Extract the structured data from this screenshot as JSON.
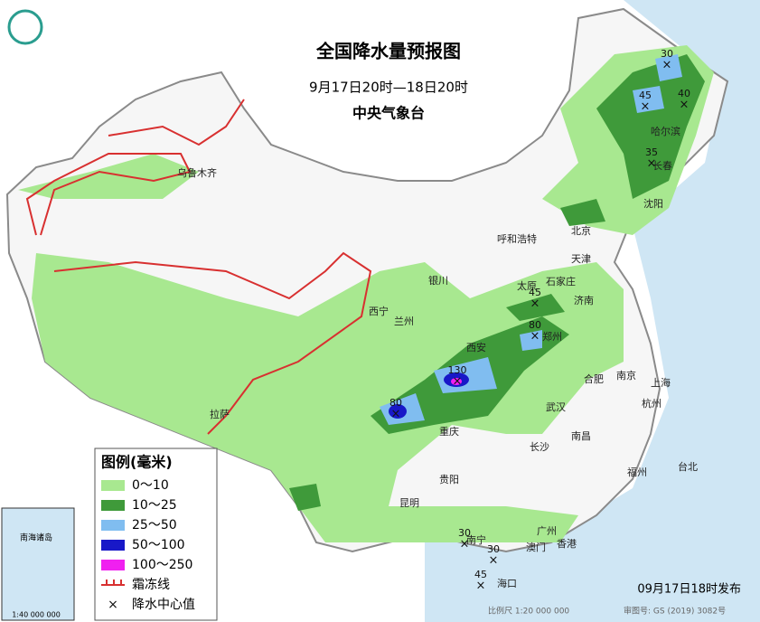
{
  "header": {
    "title": "全国降水量预报图",
    "subtitle": "9月17日20时—18日20时",
    "agency": "中央气象台"
  },
  "legend": {
    "title": "图例(毫米)",
    "items": [
      {
        "label": "0～10",
        "color": "#a8e890"
      },
      {
        "label": "10～25",
        "color": "#3f9a3a"
      },
      {
        "label": "25～50",
        "color": "#80bdf0"
      },
      {
        "label": "50～100",
        "color": "#1818c8"
      },
      {
        "label": "100～250",
        "color": "#f020f0"
      },
      {
        "label": "霜冻线",
        "color": "#d83030"
      },
      {
        "label": "降水中心值",
        "color": "#111111"
      }
    ]
  },
  "cities": [
    "乌鲁木齐",
    "哈尔滨",
    "长春",
    "沈阳",
    "呼和浩特",
    "北京",
    "天津",
    "石家庄",
    "太原",
    "银川",
    "济南",
    "西宁",
    "兰州",
    "郑州",
    "西安",
    "合肥",
    "南京",
    "上海",
    "拉萨",
    "武汉",
    "杭州",
    "重庆",
    "长沙",
    "南昌",
    "贵阳",
    "福州",
    "台北",
    "昆明",
    "南宁",
    "广州",
    "澳门",
    "香港",
    "海口"
  ],
  "centers": [
    30,
    45,
    40,
    35,
    45,
    80,
    130,
    80,
    30,
    30,
    45
  ],
  "inset": {
    "label": "南海诸岛",
    "scale": "1:40 000 000"
  },
  "footer": {
    "release": "09月17日18时发布",
    "scale": "比例尺 1:20 000 000",
    "map_number": "审图号: GS (2019) 3082号"
  }
}
